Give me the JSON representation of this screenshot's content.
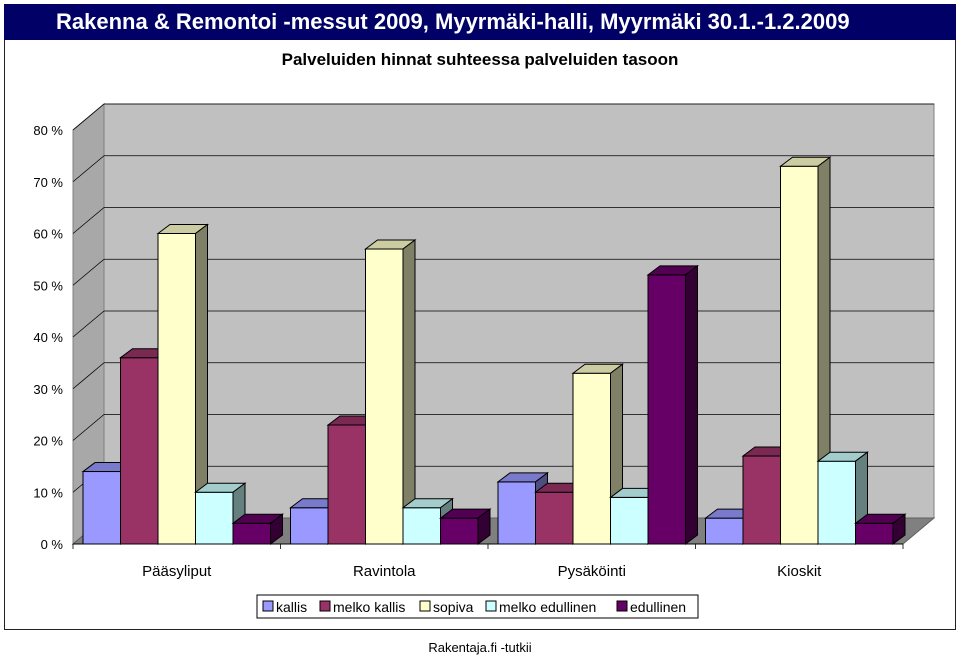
{
  "header": {
    "title": "Rakenna & Remontoi -messut 2009, Myyrmäki-halli, Myyrmäki 30.1.-1.2.2009"
  },
  "footer": {
    "source": "Rakentaja.fi -tutkii"
  },
  "chart_data": {
    "type": "bar",
    "title": "Palveluiden hinnat suhteessa palveluiden tasoon",
    "categories": [
      "Pääsyliput",
      "Ravintola",
      "Pysäköinti",
      "Kioskit"
    ],
    "series": [
      {
        "name": "kallis",
        "color": "#9999ff",
        "values": [
          14,
          7,
          12,
          5
        ]
      },
      {
        "name": "melko kallis",
        "color": "#993366",
        "values": [
          36,
          23,
          10,
          17
        ]
      },
      {
        "name": "sopiva",
        "color": "#ffffcc",
        "values": [
          60,
          57,
          33,
          73
        ]
      },
      {
        "name": "melko edullinen",
        "color": "#ccffff",
        "values": [
          10,
          7,
          9,
          16
        ]
      },
      {
        "name": "edullinen",
        "color": "#660066",
        "values": [
          4,
          5,
          52,
          4
        ]
      }
    ],
    "yticks": [
      "0 %",
      "10 %",
      "20 %",
      "30 %",
      "40 %",
      "50 %",
      "60 %",
      "70 %",
      "80 %"
    ],
    "ylim": [
      0,
      80
    ],
    "xlabel": "",
    "ylabel": "",
    "legend": "bottom"
  }
}
